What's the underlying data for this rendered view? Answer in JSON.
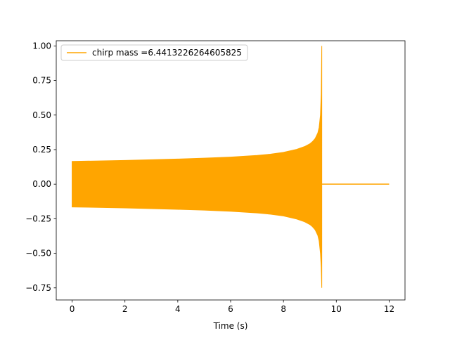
{
  "chart_data": {
    "type": "line",
    "title": "",
    "xlabel": "Time (s)",
    "ylabel": "",
    "xlim": [
      -0.6,
      12.6
    ],
    "ylim": [
      -0.8375,
      1.0375
    ],
    "x_ticks": [
      0,
      2,
      4,
      6,
      8,
      10,
      12
    ],
    "y_ticks": [
      1.0,
      0.75,
      0.5,
      0.25,
      0.0,
      -0.25,
      -0.5,
      -0.75
    ],
    "x_tick_labels": [
      "0",
      "2",
      "4",
      "6",
      "8",
      "10",
      "12"
    ],
    "y_tick_labels": [
      "1.00",
      "0.75",
      "0.50",
      "0.25",
      "0.00",
      "−0.25",
      "−0.50",
      "−0.75"
    ],
    "grid": false,
    "legend_position": "upper-left",
    "series": [
      {
        "name": "chirp mass =6.4413226264605825",
        "color": "#ffa500",
        "merger_time": 9.45,
        "x_end": 12.0,
        "envelope_x": [
          0,
          1,
          2,
          3,
          4,
          5,
          6,
          7,
          7.5,
          8,
          8.5,
          8.8,
          9.0,
          9.1,
          9.2,
          9.3,
          9.35,
          9.4,
          9.43,
          9.45
        ],
        "envelope_upper": [
          0.165,
          0.168,
          0.172,
          0.177,
          0.182,
          0.188,
          0.196,
          0.208,
          0.217,
          0.23,
          0.252,
          0.272,
          0.292,
          0.308,
          0.33,
          0.37,
          0.41,
          0.5,
          0.65,
          1.0
        ],
        "envelope_lower": [
          -0.165,
          -0.168,
          -0.172,
          -0.177,
          -0.182,
          -0.188,
          -0.196,
          -0.208,
          -0.217,
          -0.23,
          -0.252,
          -0.272,
          -0.292,
          -0.308,
          -0.33,
          -0.37,
          -0.41,
          -0.5,
          -0.6,
          -0.75
        ]
      }
    ]
  }
}
